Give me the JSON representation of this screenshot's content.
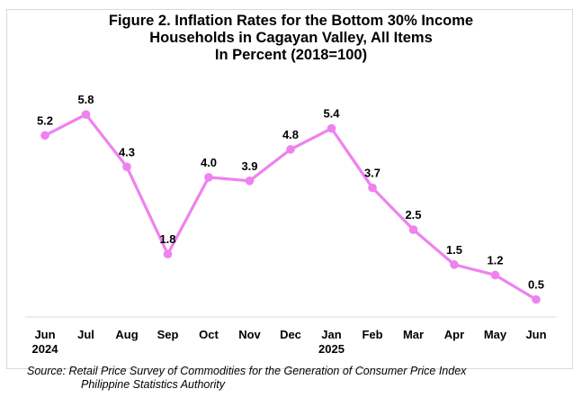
{
  "title": {
    "line1": "Figure 2. Inflation Rates for the Bottom 30% Income",
    "line2": "Households in Cagayan Valley, All Items",
    "line3": "In Percent (2018=100)"
  },
  "source": {
    "line1": "Source: Retail Price Survey of Commodities for the Generation of Consumer Price Index",
    "line2": "Philippine Statistics Authority"
  },
  "colors": {
    "series": "#ee82ee",
    "axis": "#d9d9d9",
    "text": "#000000"
  },
  "chart_data": {
    "type": "line",
    "title": "Figure 2. Inflation Rates for the Bottom 30% Income Households in Cagayan Valley, All Items In Percent (2018=100)",
    "categories": [
      "Jun",
      "Jul",
      "Aug",
      "Sep",
      "Oct",
      "Nov",
      "Dec",
      "Jan",
      "Feb",
      "Mar",
      "Apr",
      "May",
      "Jun"
    ],
    "category_years": [
      "2024",
      "",
      "",
      "",
      "",
      "",
      "",
      "2025",
      "",
      "",
      "",
      "",
      ""
    ],
    "series": [
      {
        "values": [
          5.2,
          5.8,
          4.3,
          1.8,
          4.0,
          3.9,
          4.8,
          5.4,
          3.7,
          2.5,
          1.5,
          1.2,
          0.5
        ]
      }
    ],
    "value_labels": [
      "5.2",
      "5.8",
      "4.3",
      "1.8",
      "4.0",
      "3.9",
      "4.8",
      "5.4",
      "3.7",
      "2.5",
      "1.5",
      "1.2",
      "0.5"
    ],
    "xlabel": "",
    "ylabel": "",
    "ylim": [
      0,
      6.5
    ],
    "grid": false,
    "legend": "none",
    "data_labels": true,
    "markers": "circle"
  }
}
